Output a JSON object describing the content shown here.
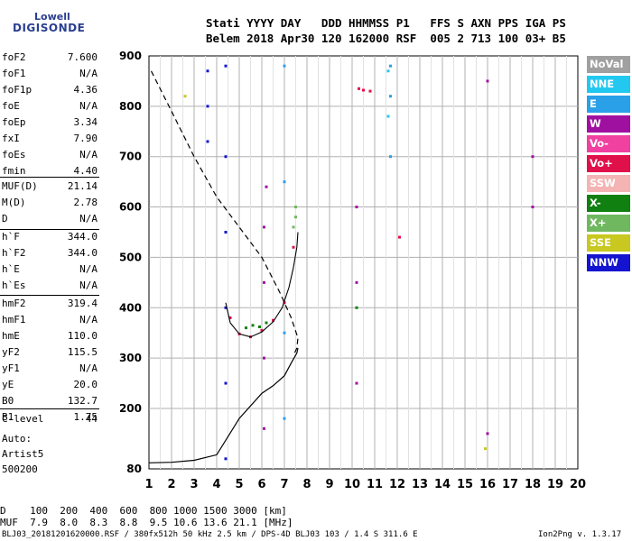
{
  "logo": {
    "line1": "Lowell",
    "line2": "DIGISONDE"
  },
  "header": {
    "row1": "Stati YYYY DAY   DDD HHMMSS P1   FFS S AXN PPS IGA PS",
    "row2": "Belem 2018 Apr30 120 162000 RSF  005 2 713 100 03+ B5"
  },
  "params": [
    {
      "k": "foF2",
      "v": "7.600"
    },
    {
      "k": "foF1",
      "v": "N/A"
    },
    {
      "k": "foF1p",
      "v": "4.36"
    },
    {
      "k": "foE",
      "v": "N/A"
    },
    {
      "k": "foEp",
      "v": "3.34"
    },
    {
      "k": "fxI",
      "v": "7.90"
    },
    {
      "k": "foEs",
      "v": "N/A"
    },
    {
      "k": "fmin",
      "v": "4.40"
    },
    {
      "k": "MUF(D)",
      "v": "21.14"
    },
    {
      "k": "M(D)",
      "v": "2.78"
    },
    {
      "k": "D",
      "v": "N/A"
    },
    {
      "k": "h`F",
      "v": "344.0"
    },
    {
      "k": "h`F2",
      "v": "344.0"
    },
    {
      "k": "h`E",
      "v": "N/A"
    },
    {
      "k": "h`Es",
      "v": "N/A"
    },
    {
      "k": "hmF2",
      "v": "319.4"
    },
    {
      "k": "hmF1",
      "v": "N/A"
    },
    {
      "k": "hmE",
      "v": "110.0"
    },
    {
      "k": "yF2",
      "v": "115.5"
    },
    {
      "k": "yF1",
      "v": "N/A"
    },
    {
      "k": "yE",
      "v": "20.0"
    },
    {
      "k": "B0",
      "v": "132.7"
    },
    {
      "k": "B1",
      "v": "1.75"
    },
    {
      "k": "C-level",
      "v": "44"
    }
  ],
  "auto": {
    "line1": "Auto:",
    "line2": "Artist5",
    "line3": "500200"
  },
  "legend": [
    {
      "label": "NoVal",
      "color": "#a0a0a0"
    },
    {
      "label": "NNE",
      "color": "#22c8f0"
    },
    {
      "label": "E",
      "color": "#2aa0e8"
    },
    {
      "label": "W",
      "color": "#a010a0"
    },
    {
      "label": "Vo-",
      "color": "#f040a0"
    },
    {
      "label": "Vo+",
      "color": "#e0104a"
    },
    {
      "label": "SSW",
      "color": "#f4b4b4"
    },
    {
      "label": "X-",
      "color": "#108010"
    },
    {
      "label": "X+",
      "color": "#70b860"
    },
    {
      "label": "SSE",
      "color": "#c8c820"
    },
    {
      "label": "NNW",
      "color": "#1414d0"
    }
  ],
  "muf_table": {
    "row1": "D    100  200  400  600  800 1000 1500 3000 [km]",
    "row2": "MUF  7.9  8.0  8.3  8.8  9.5 10.6 13.6 21.1 [MHz]"
  },
  "footer": {
    "left": "BLJ03_20181201620000.RSF / 380fx512h 50 kHz 2.5 km / DPS-4D BLJ03 103 / 1.4 S 311.6 E",
    "right": "Ion2Png v. 1.3.17"
  },
  "chart_data": {
    "type": "scatter",
    "title": "",
    "xlabel": "",
    "ylabel": "",
    "xlim": [
      1,
      20
    ],
    "ylim": [
      80,
      900
    ],
    "x_ticks": [
      1,
      2,
      3,
      4,
      5,
      6,
      7,
      8,
      9,
      10,
      11,
      12,
      13,
      14,
      15,
      16,
      17,
      18,
      19,
      20
    ],
    "y_ticks": [
      80,
      200,
      300,
      400,
      500,
      600,
      700,
      800,
      900
    ],
    "grid": true,
    "legend_position": "right",
    "series": [
      {
        "name": "NNW",
        "x": [
          4.4,
          4.4,
          4.4,
          4.4,
          4.4,
          4.4,
          3.6,
          3.6,
          3.6
        ],
        "y": [
          100,
          250,
          400,
          550,
          700,
          880,
          730,
          800,
          870
        ]
      },
      {
        "name": "W",
        "x": [
          6.1,
          6.1,
          6.1,
          6.1,
          6.2,
          10.2,
          10.2,
          10.2,
          16.0,
          16.0,
          18.0,
          18.0
        ],
        "y": [
          160,
          300,
          450,
          560,
          640,
          250,
          450,
          600,
          150,
          850,
          600,
          700
        ]
      },
      {
        "name": "E",
        "x": [
          7.0,
          7.0,
          7.0,
          7.0,
          11.7,
          11.7,
          11.7
        ],
        "y": [
          180,
          350,
          650,
          880,
          700,
          820,
          880
        ]
      },
      {
        "name": "Vo+",
        "x": [
          4.6,
          5.0,
          5.5,
          6.0,
          6.5,
          7.0,
          7.4,
          10.3,
          10.5,
          10.8,
          12.1
        ],
        "y": [
          380,
          348,
          342,
          355,
          375,
          410,
          520,
          835,
          832,
          830,
          540
        ]
      },
      {
        "name": "X-",
        "x": [
          5.3,
          5.6,
          5.9,
          6.2,
          10.2
        ],
        "y": [
          360,
          365,
          362,
          370,
          400
        ]
      },
      {
        "name": "X+",
        "x": [
          7.4,
          7.5,
          7.5
        ],
        "y": [
          560,
          580,
          600
        ]
      },
      {
        "name": "NNE",
        "x": [
          11.6,
          11.6
        ],
        "y": [
          780,
          870
        ]
      },
      {
        "name": "SSE",
        "x": [
          2.6,
          15.9
        ],
        "y": [
          820,
          120
        ]
      }
    ],
    "profile_curve": {
      "x": [
        1.0,
        2.0,
        3.0,
        4.0,
        5.0,
        6.0,
        6.5,
        7.0,
        7.3,
        7.55,
        7.6
      ],
      "y": [
        92,
        93,
        97,
        108,
        180,
        230,
        245,
        265,
        290,
        310,
        320
      ]
    },
    "trace_curve": {
      "x": [
        4.4,
        4.6,
        5.0,
        5.5,
        6.0,
        6.5,
        6.9,
        7.2,
        7.4,
        7.55,
        7.6
      ],
      "y": [
        410,
        370,
        348,
        342,
        352,
        372,
        400,
        440,
        480,
        520,
        550
      ]
    },
    "dashed_curve": {
      "x": [
        1.1,
        2.0,
        3.0,
        4.0,
        5.0,
        6.0,
        6.8,
        7.3,
        7.6,
        7.55,
        7.45
      ],
      "y": [
        870,
        790,
        700,
        620,
        560,
        500,
        430,
        380,
        340,
        320,
        310
      ]
    }
  }
}
